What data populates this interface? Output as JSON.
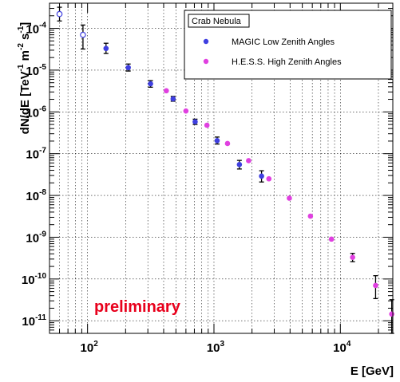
{
  "chart_data": {
    "type": "scatter",
    "xscale": "log",
    "yscale": "log",
    "xlim": [
      50,
      26000
    ],
    "ylim": [
      5e-12,
      0.0004
    ],
    "xlabel": "E [GeV]",
    "ylabel_parts": {
      "pre": "dN/dE [TeV",
      "exp1": "-1",
      "mid1": " m",
      "exp2": "-2",
      "mid2": " s",
      "exp3": "-1",
      "post": "]"
    },
    "x_ticks": [
      {
        "value": 100,
        "base": "10",
        "exp": "2"
      },
      {
        "value": 1000,
        "base": "10",
        "exp": "3"
      },
      {
        "value": 10000,
        "base": "10",
        "exp": "4"
      }
    ],
    "y_ticks": [
      {
        "value": 0.0001,
        "base": "10",
        "exp": "-4"
      },
      {
        "value": 1e-05,
        "base": "10",
        "exp": "-5"
      },
      {
        "value": 1e-06,
        "base": "10",
        "exp": "-6"
      },
      {
        "value": 1e-07,
        "base": "10",
        "exp": "-7"
      },
      {
        "value": 1e-08,
        "base": "10",
        "exp": "-8"
      },
      {
        "value": 1e-09,
        "base": "10",
        "exp": "-9"
      },
      {
        "value": 1e-10,
        "base": "10",
        "exp": "-10"
      },
      {
        "value": 1e-11,
        "base": "10",
        "exp": "-11"
      }
    ],
    "grid": true,
    "legend": {
      "title": "Crab Nebula",
      "placement": "top-right"
    },
    "annotation": {
      "text": "preliminary",
      "color": "#e8001c"
    },
    "series": [
      {
        "name": "MAGIC Low Zenith Angles",
        "color": "#3f3fe0",
        "points": [
          {
            "x": 60,
            "y": 0.00022,
            "ylo": 0.00015,
            "yhi": 0.00032,
            "open": true
          },
          {
            "x": 92,
            "y": 7e-05,
            "ylo": 3.2e-05,
            "yhi": 0.00012,
            "open": true
          },
          {
            "x": 140,
            "y": 3.3e-05,
            "ylo": 2.5e-05,
            "yhi": 4.4e-05
          },
          {
            "x": 210,
            "y": 1.15e-05,
            "ylo": 9.5e-06,
            "yhi": 1.4e-05
          },
          {
            "x": 315,
            "y": 4.7e-06,
            "ylo": 3.9e-06,
            "yhi": 5.6e-06
          },
          {
            "x": 475,
            "y": 2.05e-06,
            "ylo": 1.8e-06,
            "yhi": 2.35e-06
          },
          {
            "x": 710,
            "y": 5.8e-07,
            "ylo": 5e-07,
            "yhi": 6.7e-07
          },
          {
            "x": 1060,
            "y": 2.05e-07,
            "ylo": 1.7e-07,
            "yhi": 2.5e-07
          },
          {
            "x": 1590,
            "y": 5.5e-08,
            "ylo": 4.3e-08,
            "yhi": 6.9e-08
          },
          {
            "x": 2380,
            "y": 2.9e-08,
            "ylo": 2.1e-08,
            "yhi": 3.9e-08
          }
        ]
      },
      {
        "name": "H.E.S.S. High Zenith Angles",
        "color": "#e040e0",
        "points": [
          {
            "x": 420,
            "y": 3.2e-06
          },
          {
            "x": 600,
            "y": 1.05e-06
          },
          {
            "x": 880,
            "y": 4.8e-07
          },
          {
            "x": 1280,
            "y": 1.75e-07
          },
          {
            "x": 1880,
            "y": 6.8e-08
          },
          {
            "x": 2720,
            "y": 2.5e-08
          },
          {
            "x": 3950,
            "y": 8.6e-09
          },
          {
            "x": 5800,
            "y": 3.2e-09
          },
          {
            "x": 8500,
            "y": 9e-10
          },
          {
            "x": 12500,
            "y": 3.3e-10,
            "ylo": 2.6e-10,
            "yhi": 4.1e-10
          },
          {
            "x": 19000,
            "y": 7e-11,
            "ylo": 3.4e-11,
            "yhi": 1.2e-10
          },
          {
            "x": 25500,
            "y": 1.45e-11,
            "ylo": 5e-12,
            "yhi": 3.2e-11
          }
        ]
      }
    ]
  }
}
